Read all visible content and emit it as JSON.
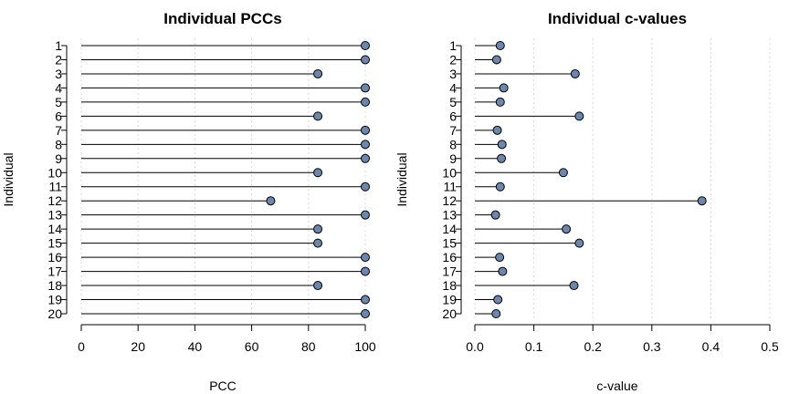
{
  "chart_data": [
    {
      "type": "lollipop",
      "title": "Individual PCCs",
      "xlabel": "PCC",
      "ylabel": "Individual",
      "xlim": [
        0,
        100
      ],
      "xticks": [
        0,
        20,
        40,
        60,
        80,
        100
      ],
      "categories": [
        "1",
        "2",
        "3",
        "4",
        "5",
        "6",
        "7",
        "8",
        "9",
        "10",
        "11",
        "12",
        "13",
        "14",
        "15",
        "16",
        "17",
        "18",
        "19",
        "20"
      ],
      "values": [
        100,
        100,
        83.3,
        100,
        100,
        83.3,
        100,
        100,
        100,
        83.3,
        100,
        66.7,
        100,
        83.3,
        83.3,
        100,
        100,
        83.3,
        100,
        100
      ],
      "grid": "vertical-dotted",
      "point_color": "#6b87ad"
    },
    {
      "type": "lollipop",
      "title": "Individual c-values",
      "xlabel": "c-value",
      "ylabel": "Individual",
      "xlim": [
        0,
        0.5
      ],
      "xticks": [
        0.0,
        0.1,
        0.2,
        0.3,
        0.4,
        0.5
      ],
      "xtick_labels": [
        "0.0",
        "0.1",
        "0.2",
        "0.3",
        "0.4",
        "0.5"
      ],
      "categories": [
        "1",
        "2",
        "3",
        "4",
        "5",
        "6",
        "7",
        "8",
        "9",
        "10",
        "11",
        "12",
        "13",
        "14",
        "15",
        "16",
        "17",
        "18",
        "19",
        "20"
      ],
      "values": [
        0.043,
        0.037,
        0.17,
        0.049,
        0.043,
        0.177,
        0.038,
        0.046,
        0.045,
        0.15,
        0.043,
        0.385,
        0.035,
        0.155,
        0.177,
        0.042,
        0.047,
        0.168,
        0.039,
        0.036
      ],
      "grid": "vertical-dotted",
      "point_color": "#6b87ad"
    }
  ]
}
